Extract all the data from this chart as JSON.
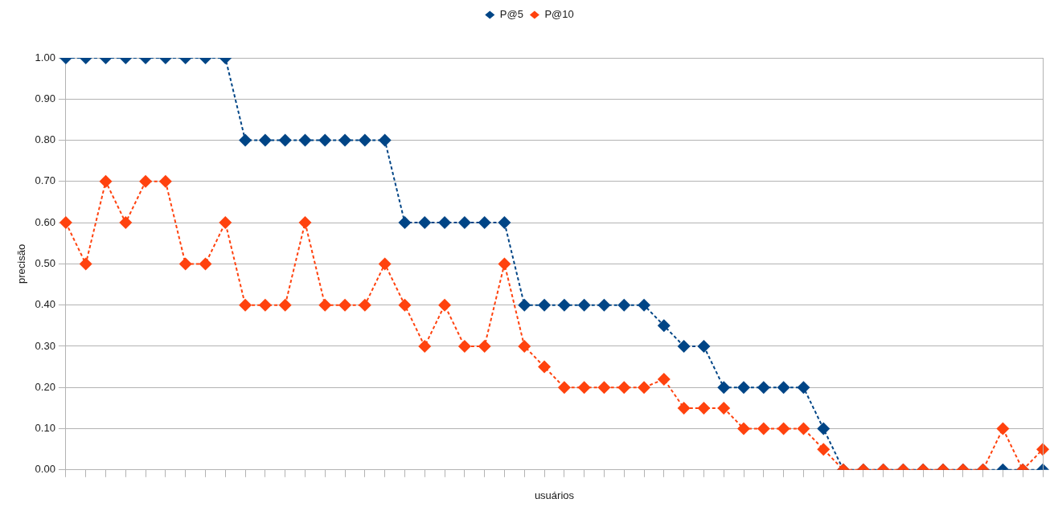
{
  "chart_data": {
    "type": "line",
    "xlabel": "usuários",
    "ylabel": "precisão",
    "categories": [
      null,
      null,
      null,
      null,
      null,
      null,
      null,
      null,
      null,
      null,
      null,
      null,
      null,
      null,
      null,
      null,
      null,
      null,
      null,
      null,
      null,
      null,
      null,
      null,
      null,
      null,
      null,
      null,
      null,
      null,
      null,
      null,
      null,
      null,
      null,
      null,
      null,
      null,
      null,
      null,
      null,
      null,
      null,
      null,
      null,
      null,
      null,
      null,
      null,
      null
    ],
    "series": [
      {
        "name": "P@5",
        "color": "#004586",
        "values": [
          1,
          1,
          1,
          1,
          1,
          1,
          1,
          1,
          1,
          0.8,
          0.8,
          0.8,
          0.8,
          0.8,
          0.8,
          0.8,
          0.8,
          0.6,
          0.6,
          0.6,
          0.6,
          0.6,
          0.6,
          0.4,
          0.4,
          0.4,
          0.4,
          0.4,
          0.4,
          0.4,
          0.35,
          0.3,
          0.3,
          0.2,
          0.2,
          0.2,
          0.2,
          0.2,
          0.1,
          0,
          0,
          0,
          0,
          0,
          0,
          0,
          0,
          0,
          0,
          0
        ]
      },
      {
        "name": "P@10",
        "color": "#ff420e",
        "values": [
          0.6,
          0.5,
          0.7,
          0.6,
          0.7,
          0.7,
          0.5,
          0.5,
          0.6,
          0.4,
          0.4,
          0.4,
          0.6,
          0.4,
          0.4,
          0.4,
          0.5,
          0.4,
          0.3,
          0.4,
          0.3,
          0.3,
          0.5,
          0.3,
          0.25,
          0.2,
          0.2,
          0.2,
          0.2,
          0.2,
          0.22,
          0.15,
          0.15,
          0.15,
          0.1,
          0.1,
          0.1,
          0.1,
          0.05,
          0,
          0,
          0,
          0,
          0,
          0,
          0,
          0,
          0.1,
          0,
          0.05
        ]
      }
    ],
    "ylim": [
      0,
      1
    ],
    "yticks": [
      {
        "value": 0,
        "label": "0.00"
      },
      {
        "value": 0.1,
        "label": "0.10"
      },
      {
        "value": 0.2,
        "label": "0.20"
      },
      {
        "value": 0.3,
        "label": "0.30"
      },
      {
        "value": 0.4,
        "label": "0.40"
      },
      {
        "value": 0.5,
        "label": "0.50"
      },
      {
        "value": 0.6,
        "label": "0.60"
      },
      {
        "value": 0.7,
        "label": "0.70"
      },
      {
        "value": 0.8,
        "label": "0.80"
      },
      {
        "value": 0.9,
        "label": "0.90"
      },
      {
        "value": 1,
        "label": "1.00"
      }
    ],
    "grid": "y",
    "legend": "top",
    "marker": "diamond",
    "line_style": "dashed"
  }
}
